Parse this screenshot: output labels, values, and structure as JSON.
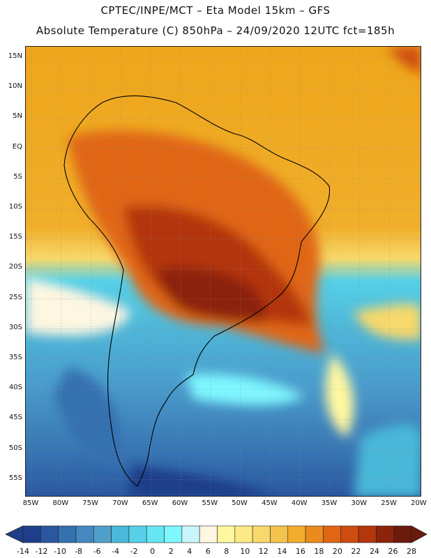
{
  "header": {
    "line1": "CPTEC/INPE/MCT –  Eta Model 15km – GFS",
    "line2": "Absolute Temperature (C) 850hPa – 24/09/2020 12UTC fct=185h"
  },
  "map": {
    "lat_labels": [
      "15N",
      "10N",
      "5N",
      "EQ",
      "5S",
      "10S",
      "15S",
      "20S",
      "25S",
      "30S",
      "35S",
      "40S",
      "45S",
      "50S",
      "55S"
    ],
    "lon_labels": [
      "85W",
      "80W",
      "75W",
      "70W",
      "65W",
      "60W",
      "55W",
      "50W",
      "45W",
      "40W",
      "35W",
      "30W",
      "25W",
      "20W"
    ],
    "grid": "dotted"
  },
  "colorbar": {
    "labels": [
      "-14",
      "-12",
      "-10",
      "-8",
      "-6",
      "-4",
      "-2",
      "0",
      "2",
      "4",
      "6",
      "8",
      "10",
      "12",
      "14",
      "16",
      "18",
      "20",
      "22",
      "24",
      "26",
      "28"
    ],
    "colors": [
      "#1f3e8a",
      "#2a57a0",
      "#3570b0",
      "#4488bf",
      "#4fa0c9",
      "#4ab8d8",
      "#55d0e8",
      "#66e6f4",
      "#7ff7ff",
      "#c8f4fb",
      "#fdf6e1",
      "#fff7a0",
      "#fbea85",
      "#f7d86a",
      "#f4c24e",
      "#f2ad2f",
      "#eb8a1d",
      "#e06615",
      "#cf4b10",
      "#b3360d",
      "#8c240c",
      "#6b1a0c"
    ],
    "underflow_color": "#1f3e8a",
    "overflow_color": "#6b1a0c"
  }
}
